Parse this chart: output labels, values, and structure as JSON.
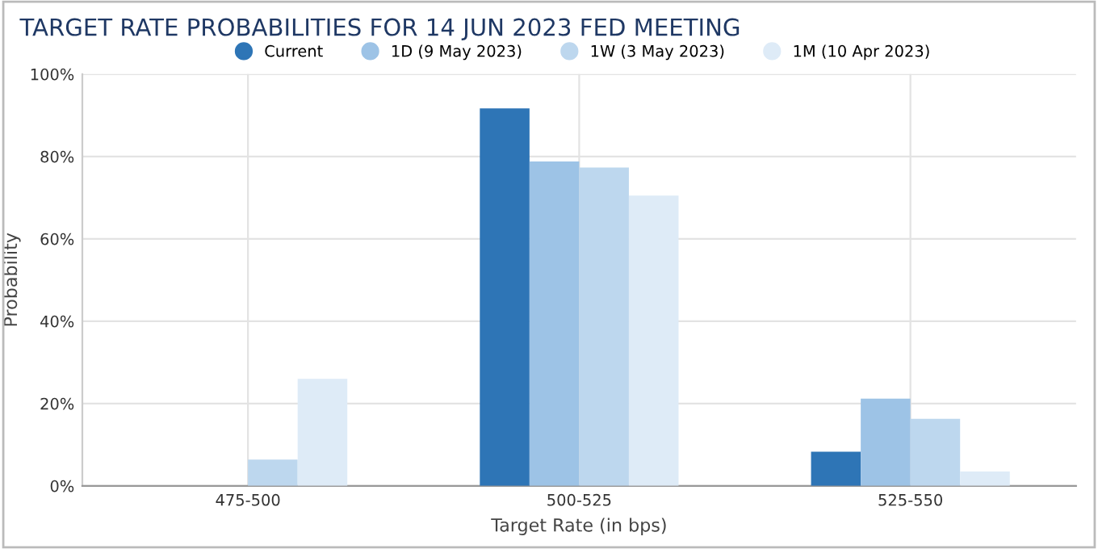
{
  "chart_data": {
    "type": "bar",
    "title": "TARGET RATE PROBABILITIES FOR 14 JUN 2023 FED MEETING",
    "xlabel": "Target Rate (in bps)",
    "ylabel": "Probability",
    "categories": [
      "475-500",
      "500-525",
      "525-550"
    ],
    "series": [
      {
        "name": "Current",
        "color": "#2e75b6",
        "values": [
          0,
          91.7,
          8.3
        ]
      },
      {
        "name": "1D (9 May 2023)",
        "color": "#9dc3e6",
        "values": [
          0,
          78.8,
          21.2
        ]
      },
      {
        "name": "1W (3 May 2023)",
        "color": "#bdd7ee",
        "values": [
          6.4,
          77.3,
          16.3
        ]
      },
      {
        "name": "1M (10 Apr 2023)",
        "color": "#deebf7",
        "values": [
          26,
          70.5,
          3.5
        ]
      }
    ],
    "ylim": [
      0,
      100
    ],
    "yticks": [
      {
        "value": 0,
        "label": "0%"
      },
      {
        "value": 20,
        "label": "20%"
      },
      {
        "value": 40,
        "label": "40%"
      },
      {
        "value": 60,
        "label": "60%"
      },
      {
        "value": 80,
        "label": "80%"
      },
      {
        "value": 100,
        "label": "100%"
      }
    ],
    "grid": true,
    "legend": "top"
  }
}
